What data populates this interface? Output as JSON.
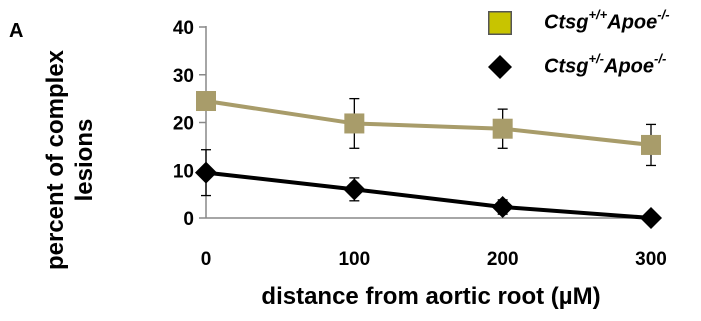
{
  "panel_label": "A",
  "chart_data": {
    "type": "line",
    "xlabel": "distance from aortic root (µM)",
    "ylabel_lines": [
      "percent of complex",
      "lesions"
    ],
    "x": [
      0,
      100,
      200,
      300
    ],
    "xlim": [
      0,
      300
    ],
    "ylim": [
      0,
      40
    ],
    "x_ticks": [
      "0",
      "100",
      "200",
      "300"
    ],
    "y_ticks": [
      "0",
      "10",
      "20",
      "30",
      "40"
    ],
    "grid": false,
    "legend_position": "top-right",
    "series": [
      {
        "name": "Ctsg+/+Apoe-/-",
        "legend_parts": [
          {
            "text": "Ctsg",
            "sup": false
          },
          {
            "text": "+/+",
            "sup": true
          },
          {
            "text": "Apoe",
            "sup": false
          },
          {
            "text": "-/-",
            "sup": true
          }
        ],
        "marker": "square",
        "line_color": "#a89c6a",
        "marker_color": "#a89c6a",
        "legend_marker_color": "#c8c400",
        "values": [
          24.5,
          19.8,
          18.7,
          15.3
        ],
        "errors": [
          null,
          5.2,
          4.1,
          4.3
        ]
      },
      {
        "name": "Ctsg+/-Apoe-/-",
        "legend_parts": [
          {
            "text": "Ctsg",
            "sup": false
          },
          {
            "text": "+/-",
            "sup": true
          },
          {
            "text": "Apoe",
            "sup": false
          },
          {
            "text": "-/-",
            "sup": true
          }
        ],
        "marker": "diamond",
        "line_color": "#000000",
        "marker_color": "#000000",
        "legend_marker_color": "#000000",
        "values": [
          9.5,
          6.0,
          2.3,
          0.0
        ],
        "errors": [
          4.8,
          2.4,
          1.5,
          null
        ]
      }
    ]
  }
}
